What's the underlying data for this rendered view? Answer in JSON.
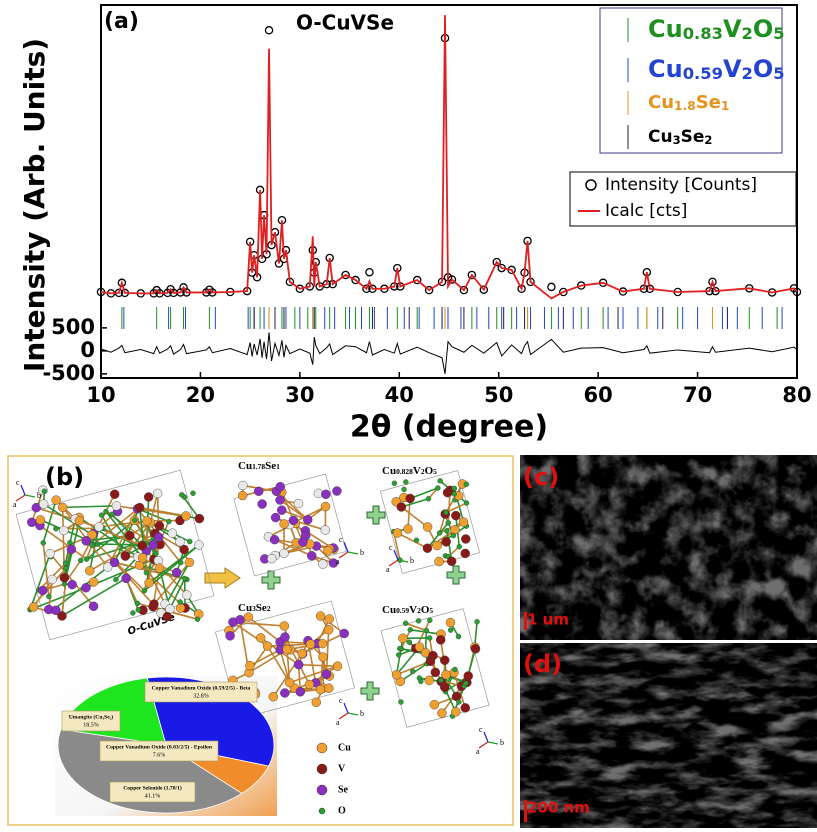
{
  "chart_data": [
    {
      "type": "line",
      "panel": "(a)",
      "title": "O-CuVSe",
      "xlabel": "2θ (degree)",
      "ylabel": "Intensity (Arb. Units)",
      "xlim": [
        10,
        80
      ],
      "xticks": [
        10,
        20,
        30,
        40,
        50,
        60,
        70,
        80
      ],
      "ylim": [
        -590,
        7520
      ],
      "yticks": [
        500,
        0,
        -500
      ],
      "x": [
        10,
        11,
        11.8,
        12.1,
        12.4,
        14,
        15.3,
        15.6,
        15.9,
        16.7,
        17,
        17.3,
        18,
        18.3,
        18.6,
        20.6,
        20.9,
        21.2,
        23,
        24.7,
        25,
        25.2,
        25.4,
        25.7,
        26,
        26.2,
        26.4,
        26.65,
        26.9,
        27.15,
        27.5,
        27.9,
        28.2,
        28.4,
        28.6,
        29,
        30,
        31,
        31.3,
        31.45,
        31.6,
        32,
        32.7,
        33,
        33.3,
        34.6,
        35.6,
        36.7,
        37,
        37.3,
        38.5,
        39.5,
        39.8,
        40.1,
        41.8,
        43,
        44.3,
        44.6,
        44.9,
        45.3,
        46.5,
        47.3,
        48.5,
        49.8,
        50.3,
        51.3,
        52.3,
        52.6,
        52.9,
        53.2,
        55.3,
        56.5,
        58.3,
        60.5,
        62.5,
        64.6,
        64.9,
        65.2,
        68,
        71.2,
        71.5,
        71.8,
        75.2,
        77.5,
        79.7,
        80
      ],
      "series": [
        {
          "name": "Intensity [Counts]",
          "color": "#000000",
          "marker": "open-circle",
          "values": [
            1280,
            1250,
            1260,
            1480,
            1260,
            1250,
            1250,
            1320,
            1250,
            1260,
            1340,
            1260,
            1270,
            1380,
            1270,
            1270,
            1330,
            1270,
            1280,
            1300,
            2370,
            1700,
            2080,
            1600,
            3500,
            2000,
            2950,
            2100,
            6970,
            2300,
            2580,
            1900,
            2840,
            2000,
            2190,
            1500,
            1350,
            1400,
            2190,
            1700,
            1930,
            1400,
            1450,
            2020,
            1450,
            1650,
            1540,
            1350,
            1710,
            1350,
            1350,
            1400,
            1800,
            1400,
            1540,
            1320,
            1500,
            6800,
            1600,
            1550,
            1320,
            1650,
            1330,
            1930,
            1800,
            1760,
            1350,
            1700,
            2390,
            1500,
            1390,
            1280,
            1420,
            1480,
            1290,
            1350,
            1710,
            1350,
            1280,
            1300,
            1500,
            1300,
            1360,
            1270,
            1360,
            1280
          ]
        },
        {
          "name": "Icalc [cts]",
          "color": "#e02020",
          "marker": "line",
          "values": [
            1280,
            1250,
            1260,
            1480,
            1260,
            1250,
            1250,
            1320,
            1250,
            1260,
            1340,
            1260,
            1270,
            1380,
            1270,
            1270,
            1330,
            1270,
            1280,
            1300,
            2370,
            1700,
            2080,
            1600,
            3500,
            2000,
            2950,
            2100,
            6570,
            2300,
            2580,
            1900,
            2840,
            2000,
            2190,
            1500,
            1350,
            1400,
            2490,
            1400,
            1930,
            1400,
            1450,
            2020,
            1450,
            1650,
            1540,
            1350,
            1510,
            1350,
            1350,
            1400,
            1800,
            1400,
            1540,
            1320,
            1500,
            7300,
            1400,
            1550,
            1320,
            1650,
            1330,
            1930,
            1800,
            1760,
            1350,
            1700,
            2390,
            1500,
            1140,
            1280,
            1420,
            1480,
            1290,
            1350,
            1710,
            1350,
            1280,
            1300,
            1500,
            1300,
            1360,
            1270,
            1360,
            1280
          ]
        },
        {
          "color": "#000000",
          "marker": "line",
          "values": [
            40,
            -30,
            60,
            120,
            -40,
            30,
            -60,
            90,
            -50,
            40,
            110,
            -70,
            30,
            140,
            -60,
            20,
            90,
            -40,
            50,
            -80,
            180,
            -120,
            150,
            -90,
            260,
            -150,
            200,
            -180,
            400,
            -220,
            160,
            -100,
            230,
            -140,
            120,
            -60,
            40,
            -50,
            -300,
            300,
            120,
            -60,
            70,
            150,
            -80,
            110,
            90,
            -40,
            200,
            -90,
            30,
            -50,
            160,
            -70,
            80,
            -40,
            -150,
            -500,
            200,
            90,
            -30,
            120,
            -50,
            180,
            -110,
            130,
            -60,
            110,
            200,
            -80,
            250,
            -30,
            60,
            70,
            -40,
            30,
            110,
            -50,
            20,
            -40,
            90,
            -30,
            60,
            -20,
            80,
            30
          ]
        }
      ],
      "reflections": [
        {
          "name": [
            "Cu",
            "0.83",
            "V",
            "2",
            "O",
            "5"
          ],
          "color": "#1f8f1f",
          "positions": [
            12.1,
            15.6,
            17.0,
            18.3,
            20.9,
            25.0,
            26.0,
            26.9,
            28.2,
            29.5,
            30.8,
            31.6,
            33.0,
            34.6,
            35.6,
            37.0,
            39.8,
            41.8,
            44.6,
            47.3,
            49.8,
            51.3,
            52.9,
            55.3,
            58.3,
            60.5,
            64.9,
            68.0,
            71.5,
            75.2,
            78.0
          ]
        },
        {
          "name": [
            "Cu",
            "0.59",
            "V",
            "2",
            "O",
            "5"
          ],
          "color": "#2443d0",
          "positions": [
            12.3,
            16.8,
            18.5,
            21.5,
            24.8,
            25.4,
            26.4,
            27.5,
            28.6,
            30.0,
            31.3,
            32.5,
            33.5,
            35.0,
            36.2,
            37.5,
            38.8,
            40.5,
            42.0,
            43.5,
            44.9,
            46.2,
            47.8,
            49.0,
            50.3,
            51.8,
            53.2,
            54.6,
            56.0,
            57.5,
            59.0,
            61.0,
            62.5,
            64.0,
            66.0,
            68.5,
            70.0,
            72.5,
            74.0,
            76.5,
            78.5
          ]
        },
        {
          "name": [
            "Cu",
            "1.8",
            "Se",
            "1"
          ],
          "color": "#e8921e",
          "positions": [
            26.9,
            31.3,
            44.6,
            52.9,
            64.9,
            71.5
          ]
        },
        {
          "name": [
            "Cu",
            "3",
            "Se",
            "2"
          ],
          "color": "#1c1c4a",
          "positions": [
            25.4,
            27.5,
            28.4,
            31.45,
            37.3,
            41.0,
            44.3,
            46.5,
            50.5,
            52.6,
            56.5,
            62.0,
            66.5,
            73.0
          ]
        }
      ]
    },
    {
      "type": "pie",
      "categories": [
        "Copper Vanadium Oxide (0.59/2/5) - Beta",
        "Copper Vanadium Oxide (0.83/2/5) - Epsilon",
        "Copper Selenide (1.78/1)",
        "Umangite (Cu₃Se₂)"
      ],
      "values": [
        32.8,
        7.6,
        41.1,
        18.5
      ],
      "value_labels": [
        "32.8%",
        "7.6%",
        "41.1%",
        "18.5%"
      ],
      "colors": [
        "#1a1ae6",
        "#f08c2a",
        "#8a8a8a",
        "#1ee61e"
      ]
    }
  ],
  "structure_panel": {
    "label": "(b)",
    "composite": "O-CuVSe",
    "phases": [
      [
        "Cu",
        "1.78",
        "Se",
        "1"
      ],
      [
        "Cu",
        "0.828",
        "V",
        "2",
        "O",
        "5"
      ],
      [
        "Cu",
        "3",
        "Se",
        "2"
      ],
      [
        "Cu",
        "0.59",
        "V",
        "2",
        "O",
        "5"
      ]
    ],
    "atoms": [
      "Cu",
      "V",
      "Se",
      "O"
    ],
    "axes": [
      "a",
      "b",
      "c"
    ]
  },
  "sem_panels": [
    {
      "label": "(c)",
      "scale": "1 um"
    },
    {
      "label": "(d)",
      "scale": "200 nm"
    }
  ]
}
